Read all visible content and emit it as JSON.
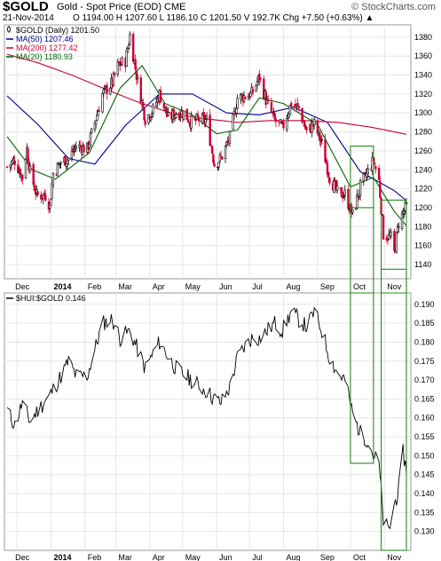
{
  "header": {
    "symbol": "$GOLD",
    "description": "Gold - Spot Price (EOD)  CME",
    "watermark": "© StockCharts.com",
    "date": "21-Nov-2014",
    "quote": "O 1194.00  H 1207.60  L 1186.10  C 1201.50  V 192.7K  Chg +7.50 (+0.63%) ▲"
  },
  "legend_top": [
    {
      "label": "$GOLD (Daily) 1201.50",
      "color": "#000000",
      "icon": "candlestick-swatch-icon"
    },
    {
      "label": "MA(50) 1207.46",
      "color": "#00008b",
      "icon": "line-swatch-icon"
    },
    {
      "label": "MA(200) 1277.42",
      "color": "#cc0033",
      "icon": "line-swatch-icon"
    },
    {
      "label": "MA(20) 1180.93",
      "color": "#006400",
      "icon": "line-swatch-icon"
    }
  ],
  "legend_bottom": [
    {
      "label": "$HUI:$GOLD 0.146",
      "color": "#000000",
      "icon": "line-swatch-icon"
    }
  ],
  "x_axis_labels": [
    "Dec",
    "2014",
    "Feb",
    "Mar",
    "Apr",
    "May",
    "Jun",
    "Jul",
    "Aug",
    "Sep",
    "Oct",
    "Nov"
  ],
  "colors": {
    "up": "#000000",
    "down": "#cc0033",
    "box": "#228b22",
    "grid": "#e6e6e6"
  },
  "chart_data": [
    {
      "type": "candlestick",
      "series_name": "$GOLD (Daily)",
      "ylim": [
        1125,
        1393
      ],
      "y_ticks": [
        "1140",
        "1160",
        "1180",
        "1200",
        "1220",
        "1240",
        "1260",
        "1280",
        "1300",
        "1320",
        "1340",
        "1360",
        "1380"
      ],
      "x_domain": [
        "2013-11-22",
        "2014-11-21"
      ],
      "price_path": [
        [
          "2013-11-22",
          1243
        ],
        [
          "2013-11-29",
          1250
        ],
        [
          "2013-12-06",
          1232
        ],
        [
          "2013-12-10",
          1262
        ],
        [
          "2013-12-13",
          1238
        ],
        [
          "2013-12-19",
          1213
        ],
        [
          "2013-12-27",
          1213
        ],
        [
          "2013-12-31",
          1202
        ],
        [
          "2014-01-03",
          1236
        ],
        [
          "2014-01-10",
          1248
        ],
        [
          "2014-01-17",
          1252
        ],
        [
          "2014-01-24",
          1265
        ],
        [
          "2014-02-03",
          1262
        ],
        [
          "2014-02-10",
          1290
        ],
        [
          "2014-02-17",
          1320
        ],
        [
          "2014-02-26",
          1332
        ],
        [
          "2014-03-03",
          1350
        ],
        [
          "2014-03-10",
          1355
        ],
        [
          "2014-03-14",
          1382
        ],
        [
          "2014-03-21",
          1333
        ],
        [
          "2014-03-28",
          1294
        ],
        [
          "2014-04-04",
          1303
        ],
        [
          "2014-04-10",
          1320
        ],
        [
          "2014-04-18",
          1294
        ],
        [
          "2014-04-25",
          1300
        ],
        [
          "2014-05-02",
          1300
        ],
        [
          "2014-05-09",
          1290
        ],
        [
          "2014-05-16",
          1293
        ],
        [
          "2014-05-23",
          1292
        ],
        [
          "2014-05-30",
          1246
        ],
        [
          "2014-06-05",
          1252
        ],
        [
          "2014-06-13",
          1274
        ],
        [
          "2014-06-20",
          1316
        ],
        [
          "2014-06-27",
          1318
        ],
        [
          "2014-07-03",
          1320
        ],
        [
          "2014-07-10",
          1338
        ],
        [
          "2014-07-17",
          1310
        ],
        [
          "2014-07-24",
          1292
        ],
        [
          "2014-07-31",
          1284
        ],
        [
          "2014-08-08",
          1310
        ],
        [
          "2014-08-15",
          1305
        ],
        [
          "2014-08-22",
          1280
        ],
        [
          "2014-08-29",
          1288
        ],
        [
          "2014-09-05",
          1267
        ],
        [
          "2014-09-12",
          1232
        ],
        [
          "2014-09-19",
          1216
        ],
        [
          "2014-09-26",
          1214
        ],
        [
          "2014-10-03",
          1192
        ],
        [
          "2014-10-10",
          1222
        ],
        [
          "2014-10-17",
          1238
        ],
        [
          "2014-10-22",
          1250
        ],
        [
          "2014-10-27",
          1228
        ],
        [
          "2014-10-31",
          1172
        ],
        [
          "2014-11-07",
          1168
        ],
        [
          "2014-11-10",
          1152
        ],
        [
          "2014-11-14",
          1185
        ],
        [
          "2014-11-21",
          1201.5
        ]
      ],
      "ma": [
        {
          "name": "MA(50)",
          "value": 1207.46,
          "color": "#00008b",
          "path": [
            [
              "2013-11-22",
              1318
            ],
            [
              "2013-12-20",
              1288
            ],
            [
              "2014-01-17",
              1252
            ],
            [
              "2014-02-10",
              1246
            ],
            [
              "2014-03-10",
              1287
            ],
            [
              "2014-04-10",
              1320
            ],
            [
              "2014-05-10",
              1320
            ],
            [
              "2014-06-10",
              1300
            ],
            [
              "2014-07-10",
              1298
            ],
            [
              "2014-08-10",
              1306
            ],
            [
              "2014-09-10",
              1290
            ],
            [
              "2014-10-10",
              1238
            ],
            [
              "2014-11-10",
              1218
            ],
            [
              "2014-11-21",
              1207.46
            ]
          ]
        },
        {
          "name": "MA(200)",
          "value": 1277.42,
          "color": "#cc0033",
          "path": [
            [
              "2013-11-22",
              1362
            ],
            [
              "2013-12-20",
              1353
            ],
            [
              "2014-01-20",
              1340
            ],
            [
              "2014-02-20",
              1325
            ],
            [
              "2014-03-20",
              1312
            ],
            [
              "2014-04-20",
              1300
            ],
            [
              "2014-05-20",
              1294
            ],
            [
              "2014-06-20",
              1290
            ],
            [
              "2014-07-20",
              1292
            ],
            [
              "2014-08-20",
              1292
            ],
            [
              "2014-09-20",
              1290
            ],
            [
              "2014-10-20",
              1285
            ],
            [
              "2014-11-21",
              1277.42
            ]
          ]
        },
        {
          "name": "MA(20)",
          "value": 1180.93,
          "color": "#006400",
          "path": [
            [
              "2013-11-22",
              1275
            ],
            [
              "2013-12-15",
              1240
            ],
            [
              "2014-01-05",
              1230
            ],
            [
              "2014-02-05",
              1258
            ],
            [
              "2014-03-05",
              1326
            ],
            [
              "2014-03-25",
              1350
            ],
            [
              "2014-04-15",
              1310
            ],
            [
              "2014-05-10",
              1298
            ],
            [
              "2014-06-01",
              1278
            ],
            [
              "2014-06-20",
              1282
            ],
            [
              "2014-07-10",
              1316
            ],
            [
              "2014-08-01",
              1310
            ],
            [
              "2014-09-01",
              1288
            ],
            [
              "2014-10-01",
              1222
            ],
            [
              "2014-10-22",
              1232
            ],
            [
              "2014-11-10",
              1196
            ],
            [
              "2014-11-21",
              1180.93
            ]
          ]
        }
      ]
    },
    {
      "type": "line",
      "series_name": "$HUI:$GOLD",
      "last_value": 0.146,
      "ylim": [
        0.125,
        0.193
      ],
      "y_ticks": [
        "0.130",
        "0.135",
        "0.140",
        "0.145",
        "0.150",
        "0.155",
        "0.160",
        "0.165",
        "0.170",
        "0.175",
        "0.180",
        "0.185",
        "0.190"
      ],
      "path": [
        [
          "2013-11-22",
          0.162
        ],
        [
          "2013-11-29",
          0.158
        ],
        [
          "2013-12-06",
          0.164
        ],
        [
          "2013-12-13",
          0.159
        ],
        [
          "2013-12-20",
          0.162
        ],
        [
          "2013-12-31",
          0.166
        ],
        [
          "2014-01-10",
          0.171
        ],
        [
          "2014-01-17",
          0.175
        ],
        [
          "2014-01-24",
          0.171
        ],
        [
          "2014-02-03",
          0.171
        ],
        [
          "2014-02-10",
          0.178
        ],
        [
          "2014-02-17",
          0.185
        ],
        [
          "2014-02-26",
          0.186
        ],
        [
          "2014-03-05",
          0.181
        ],
        [
          "2014-03-14",
          0.183
        ],
        [
          "2014-03-21",
          0.178
        ],
        [
          "2014-03-28",
          0.173
        ],
        [
          "2014-04-04",
          0.177
        ],
        [
          "2014-04-10",
          0.18
        ],
        [
          "2014-04-18",
          0.176
        ],
        [
          "2014-04-25",
          0.173
        ],
        [
          "2014-05-09",
          0.17
        ],
        [
          "2014-05-23",
          0.167
        ],
        [
          "2014-05-30",
          0.165
        ],
        [
          "2014-06-05",
          0.164
        ],
        [
          "2014-06-13",
          0.168
        ],
        [
          "2014-06-20",
          0.176
        ],
        [
          "2014-06-27",
          0.179
        ],
        [
          "2014-07-03",
          0.181
        ],
        [
          "2014-07-10",
          0.181
        ],
        [
          "2014-07-17",
          0.183
        ],
        [
          "2014-07-24",
          0.185
        ],
        [
          "2014-07-31",
          0.183
        ],
        [
          "2014-08-08",
          0.188
        ],
        [
          "2014-08-15",
          0.186
        ],
        [
          "2014-08-22",
          0.184
        ],
        [
          "2014-08-29",
          0.188
        ],
        [
          "2014-09-05",
          0.183
        ],
        [
          "2014-09-12",
          0.176
        ],
        [
          "2014-09-19",
          0.172
        ],
        [
          "2014-09-26",
          0.17
        ],
        [
          "2014-10-03",
          0.161
        ],
        [
          "2014-10-10",
          0.156
        ],
        [
          "2014-10-17",
          0.154
        ],
        [
          "2014-10-22",
          0.15
        ],
        [
          "2014-10-27",
          0.148
        ],
        [
          "2014-10-31",
          0.133
        ],
        [
          "2014-11-05",
          0.13
        ],
        [
          "2014-11-10",
          0.137
        ],
        [
          "2014-11-14",
          0.141
        ],
        [
          "2014-11-18",
          0.151
        ],
        [
          "2014-11-21",
          0.146
        ]
      ]
    }
  ],
  "annotations": {
    "boxes": [
      {
        "panel": "both",
        "from": "2014-10-01",
        "to": "2014-10-22",
        "top_panel_range": [
          1200,
          1265
        ],
        "bottom_panel_range": [
          0.148,
          0.193
        ]
      },
      {
        "panel": "both",
        "from": "2014-10-29",
        "to": "2014-11-21",
        "top_panel_range": [
          1135,
          1208
        ],
        "bottom_panel_range": [
          0.125,
          0.193
        ]
      }
    ]
  }
}
